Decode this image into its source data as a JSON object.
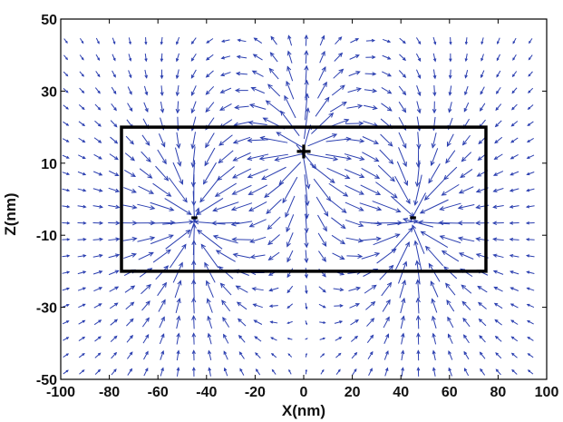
{
  "chart_data": {
    "type": "quiver",
    "title": "",
    "xlabel": "X(nm)",
    "ylabel": "Z(nm)",
    "xlim": [
      -100,
      100
    ],
    "ylim": [
      -50,
      50
    ],
    "xticks": [
      -100,
      -80,
      -60,
      -40,
      -20,
      0,
      20,
      40,
      60,
      80,
      100
    ],
    "yticks": [
      -50,
      -30,
      -10,
      10,
      30,
      50
    ],
    "xtick_labels": [
      "-100",
      "-80",
      "-60",
      "-40",
      "-20",
      "0",
      "20",
      "40",
      "60",
      "80",
      "100"
    ],
    "ytick_labels": [
      "-50",
      "-30",
      "-10",
      "10",
      "30",
      "50"
    ],
    "grid": false,
    "arrow_color": "#2b3fb0",
    "field_charges": [
      {
        "x": 0,
        "z": 13,
        "strength": 1.0
      },
      {
        "x": -45,
        "z": -6,
        "strength": -1.0
      },
      {
        "x": 45,
        "z": -6,
        "strength": -1.0
      }
    ],
    "box": {
      "x": [
        -75,
        75
      ],
      "z": [
        -20,
        20
      ],
      "color": "#000000"
    },
    "annotations": [
      {
        "text": "+",
        "x": 0,
        "z": 13
      },
      {
        "text": "-",
        "x": -45,
        "z": -5
      },
      {
        "text": "-",
        "x": 45,
        "z": -5
      }
    ]
  }
}
